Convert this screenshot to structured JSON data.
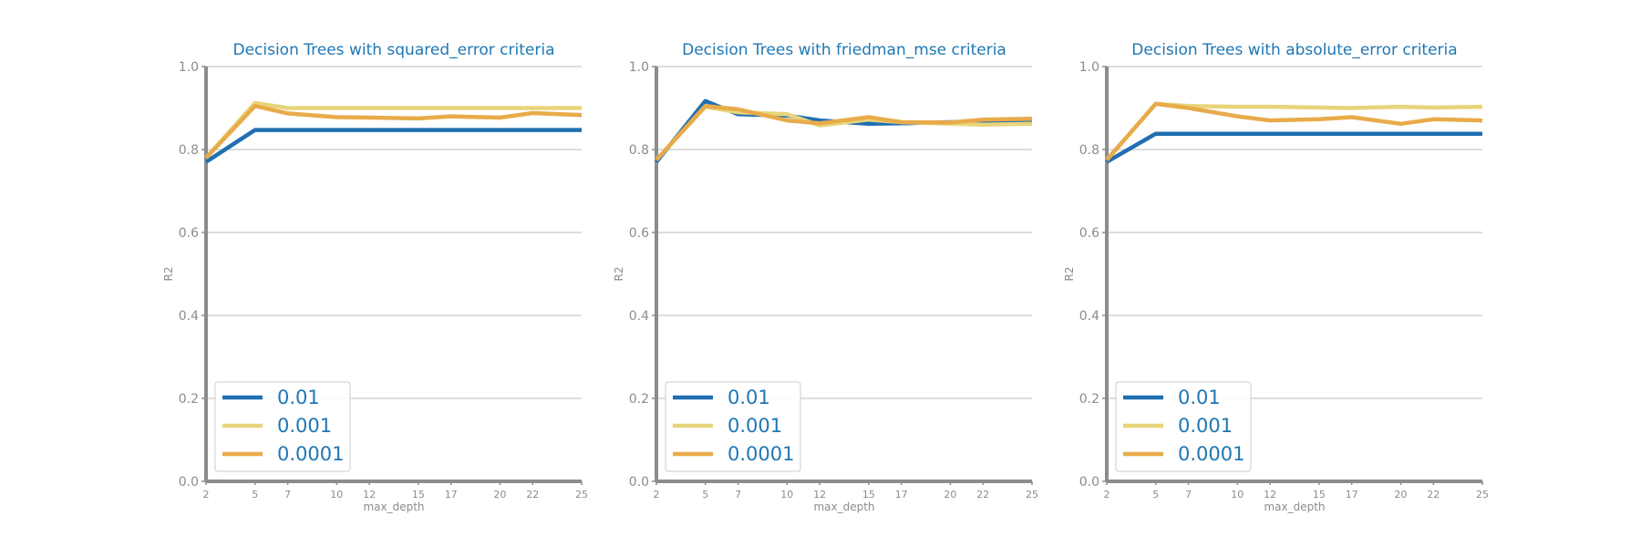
{
  "colors": {
    "title": "#1f77b4",
    "axis": "#8c8c8c",
    "grid": "#d2d2d2",
    "tick_text": "#8c8c8c",
    "legend_text": "#1f77b4",
    "series": [
      "#1f6fb2",
      "#e8d57a",
      "#e8ab4a"
    ]
  },
  "chart_data": [
    {
      "type": "line",
      "title": "Decision Trees with squared_error criteria",
      "xlabel": "max_depth",
      "ylabel": "R2",
      "x": [
        2,
        5,
        7,
        10,
        12,
        15,
        17,
        20,
        22,
        25
      ],
      "xlim": [
        2,
        25
      ],
      "ylim": [
        0,
        1
      ],
      "yticks": [
        0.0,
        0.2,
        0.4,
        0.6,
        0.8,
        1.0
      ],
      "grid": "horizontal",
      "legend_location": "lower-left",
      "series": [
        {
          "name": "0.01",
          "values": [
            0.77,
            0.847,
            0.847,
            0.847,
            0.847,
            0.847,
            0.847,
            0.847,
            0.847,
            0.847
          ]
        },
        {
          "name": "0.001",
          "values": [
            0.78,
            0.912,
            0.9,
            0.9,
            0.9,
            0.9,
            0.9,
            0.9,
            0.9,
            0.9
          ]
        },
        {
          "name": "0.0001",
          "values": [
            0.78,
            0.905,
            0.887,
            0.878,
            0.877,
            0.875,
            0.88,
            0.877,
            0.888,
            0.883
          ]
        }
      ]
    },
    {
      "type": "line",
      "title": "Decision Trees with friedman_mse criteria",
      "xlabel": "max_depth",
      "ylabel": "R2",
      "x": [
        2,
        5,
        7,
        10,
        12,
        15,
        17,
        20,
        22,
        25
      ],
      "xlim": [
        2,
        25
      ],
      "ylim": [
        0,
        1
      ],
      "yticks": [
        0.0,
        0.2,
        0.4,
        0.6,
        0.8,
        1.0
      ],
      "grid": "horizontal",
      "legend_location": "lower-left",
      "series": [
        {
          "name": "0.01",
          "values": [
            0.77,
            0.917,
            0.885,
            0.882,
            0.87,
            0.862,
            0.863,
            0.866,
            0.865,
            0.868
          ]
        },
        {
          "name": "0.001",
          "values": [
            0.775,
            0.903,
            0.89,
            0.885,
            0.858,
            0.872,
            0.866,
            0.862,
            0.86,
            0.862
          ]
        },
        {
          "name": "0.0001",
          "values": [
            0.775,
            0.905,
            0.897,
            0.87,
            0.863,
            0.878,
            0.866,
            0.865,
            0.872,
            0.874
          ]
        }
      ]
    },
    {
      "type": "line",
      "title": "Decision Trees with absolute_error criteria",
      "xlabel": "max_depth",
      "ylabel": "R2",
      "x": [
        2,
        5,
        7,
        10,
        12,
        15,
        17,
        20,
        22,
        25
      ],
      "xlim": [
        2,
        25
      ],
      "ylim": [
        0,
        1
      ],
      "yticks": [
        0.0,
        0.2,
        0.4,
        0.6,
        0.8,
        1.0
      ],
      "grid": "horizontal",
      "legend_location": "lower-left",
      "series": [
        {
          "name": "0.01",
          "values": [
            0.77,
            0.838,
            0.838,
            0.838,
            0.838,
            0.838,
            0.838,
            0.838,
            0.838,
            0.838
          ]
        },
        {
          "name": "0.001",
          "values": [
            0.775,
            0.91,
            0.905,
            0.903,
            0.903,
            0.901,
            0.9,
            0.903,
            0.901,
            0.903
          ]
        },
        {
          "name": "0.0001",
          "values": [
            0.775,
            0.91,
            0.9,
            0.88,
            0.87,
            0.873,
            0.878,
            0.862,
            0.873,
            0.87
          ]
        }
      ]
    }
  ]
}
